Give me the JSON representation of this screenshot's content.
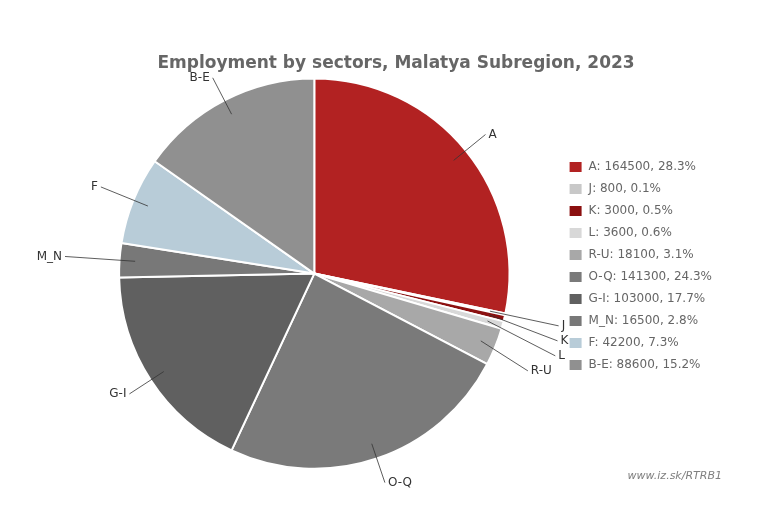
{
  "chart_data": {
    "type": "pie",
    "title": "Employment by sectors, Malatya Subregion, 2023",
    "subtitle": "www.iz.sk/RTRB1",
    "categories": [
      "A",
      "J",
      "K",
      "L",
      "R-U",
      "O-Q",
      "G-I",
      "M_N",
      "F",
      "B-E"
    ],
    "values": [
      164500,
      800,
      3000,
      3600,
      18100,
      141300,
      103000,
      16500,
      42200,
      88600
    ],
    "value_labels": [
      "A: 164500, 28.3%",
      "J: 800, 0.1%",
      "K: 3000, 0.5%",
      "L: 3600, 0.6%",
      "R-U: 18100, 3.1%",
      "O-Q: 141300, 24.3%",
      "G-I: 103000, 17.7%",
      "M_N: 16500, 2.8%",
      "F: 42200, 7.3%",
      "B-E: 88600, 15.2%"
    ],
    "colors": [
      "#b22222",
      "#c8c8c8",
      "#8b1010",
      "#d8d8d8",
      "#a8a8a8",
      "#7a7a7a",
      "#606060",
      "#787878",
      "#b8ccd8",
      "#909090"
    ],
    "legend": "right"
  }
}
